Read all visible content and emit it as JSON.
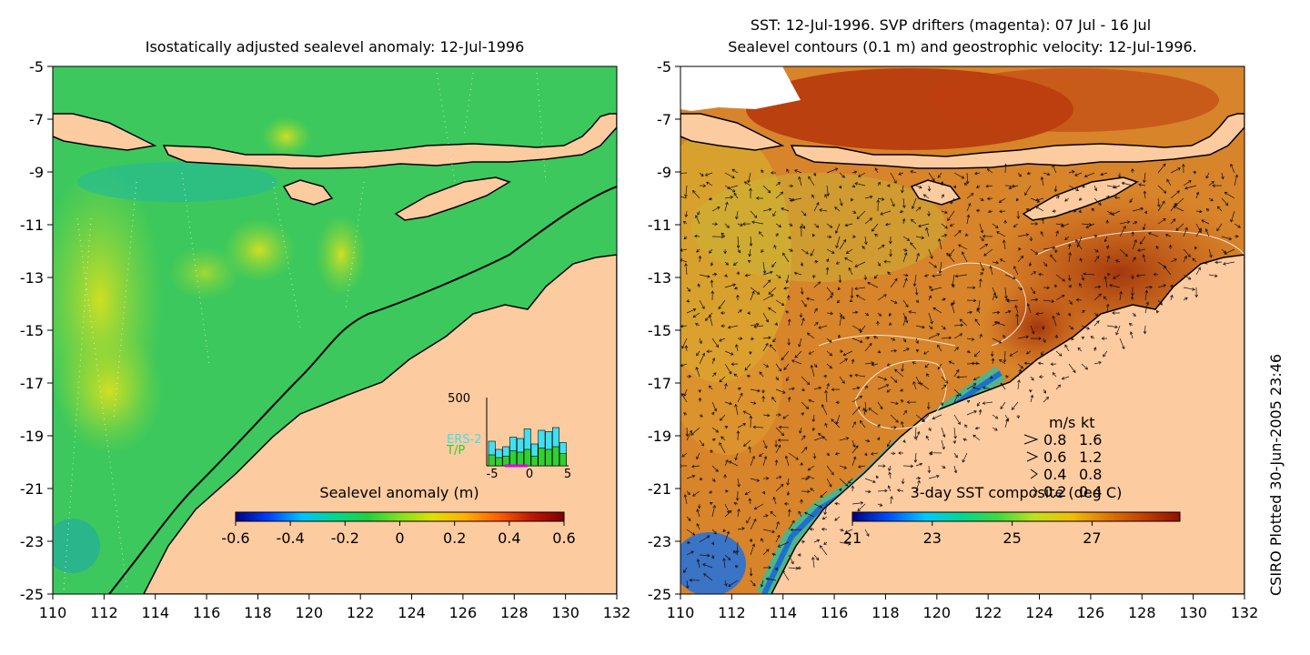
{
  "left_panel": {
    "title": "Isostatically adjusted sealevel anomaly: 12-Jul-1996",
    "colorbar": {
      "label": "Sealevel anomaly (m)",
      "ticks": [
        "-0.6",
        "-0.4",
        "-0.2",
        "0",
        "0.2",
        "0.4",
        "0.6"
      ],
      "colors": [
        "#00007f",
        "#0040ff",
        "#00c0ff",
        "#00d890",
        "#20d040",
        "#80e020",
        "#e0e000",
        "#ffb000",
        "#ff6000",
        "#c01800",
        "#7f0000"
      ]
    },
    "histogram": {
      "ymax_label": "500",
      "legend": [
        "ERS-2",
        "T/P"
      ],
      "xticks": [
        "-5",
        "0",
        "5"
      ],
      "ers2_values": [
        180,
        120,
        140,
        210,
        200,
        270,
        160,
        260,
        250,
        280,
        170
      ],
      "tp_values": [
        80,
        60,
        70,
        110,
        100,
        120,
        70,
        130,
        120,
        140,
        90
      ]
    }
  },
  "right_panel": {
    "title_line1": "SST: 12-Jul-1996. SVP drifters (magenta): 07 Jul - 16 Jul",
    "title_line2": "Sealevel contours (0.1 m) and geostrophic velocity: 12-Jul-1996.",
    "colorbar": {
      "label": "3-day SST composite (deg C)",
      "ticks": [
        "21",
        "23",
        "25",
        "27"
      ],
      "colors": [
        "#00007f",
        "#0050ff",
        "#00c8ff",
        "#00d890",
        "#40d840",
        "#c0e020",
        "#f0c000",
        "#e07800",
        "#c04000",
        "#901000"
      ]
    },
    "velocity_legend": {
      "header_ms": "m/s",
      "header_kt": "kt",
      "rows": [
        {
          "ms": "0.8",
          "kt": "1.6"
        },
        {
          "ms": "0.6",
          "kt": "1.2"
        },
        {
          "ms": "0.4",
          "kt": "0.8"
        },
        {
          "ms": "0.2",
          "kt": "0.4"
        }
      ]
    }
  },
  "axes": {
    "y_ticks": [
      "-5",
      "-7",
      "-9",
      "-11",
      "-13",
      "-15",
      "-17",
      "-19",
      "-21",
      "-23",
      "-25"
    ],
    "x_ticks": [
      "110",
      "112",
      "114",
      "116",
      "118",
      "120",
      "122",
      "124",
      "126",
      "128",
      "130",
      "132"
    ]
  },
  "side_label": "CSIRO Plotted 30-Jun-2005 23:46",
  "colors": {
    "land": "#fdcba0",
    "ocean_green": "#2ec85a",
    "sst_orange": "#d87a26"
  }
}
